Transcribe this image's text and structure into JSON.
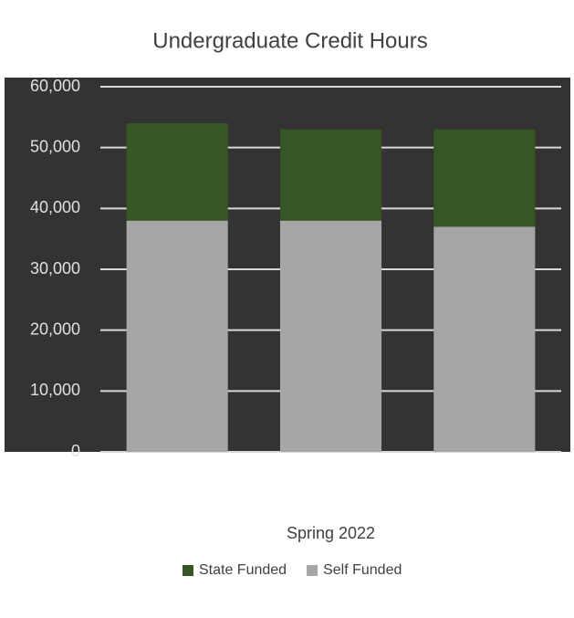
{
  "chart_data": {
    "type": "bar",
    "title": "Undergraduate Credit Hours",
    "categories": [
      null,
      "Spring 2022",
      null
    ],
    "series": [
      {
        "name": "State Funded",
        "color": "#375623",
        "values": [
          16000,
          15000,
          16000
        ]
      },
      {
        "name": "Self Funded",
        "color": "#a6a6a6",
        "values": [
          38000,
          38000,
          37000
        ]
      }
    ],
    "ylim": [
      0,
      60000
    ],
    "yticks": [
      {
        "value": 0,
        "label": "0"
      },
      {
        "value": 10000,
        "label": "10,000"
      },
      {
        "value": 20000,
        "label": "20,000"
      },
      {
        "value": 30000,
        "label": "30,000"
      },
      {
        "value": 40000,
        "label": "40,000"
      },
      {
        "value": 50000,
        "label": "50,000"
      },
      {
        "value": 60000,
        "label": "60,000"
      }
    ],
    "grid": true,
    "legend": "bottom"
  }
}
